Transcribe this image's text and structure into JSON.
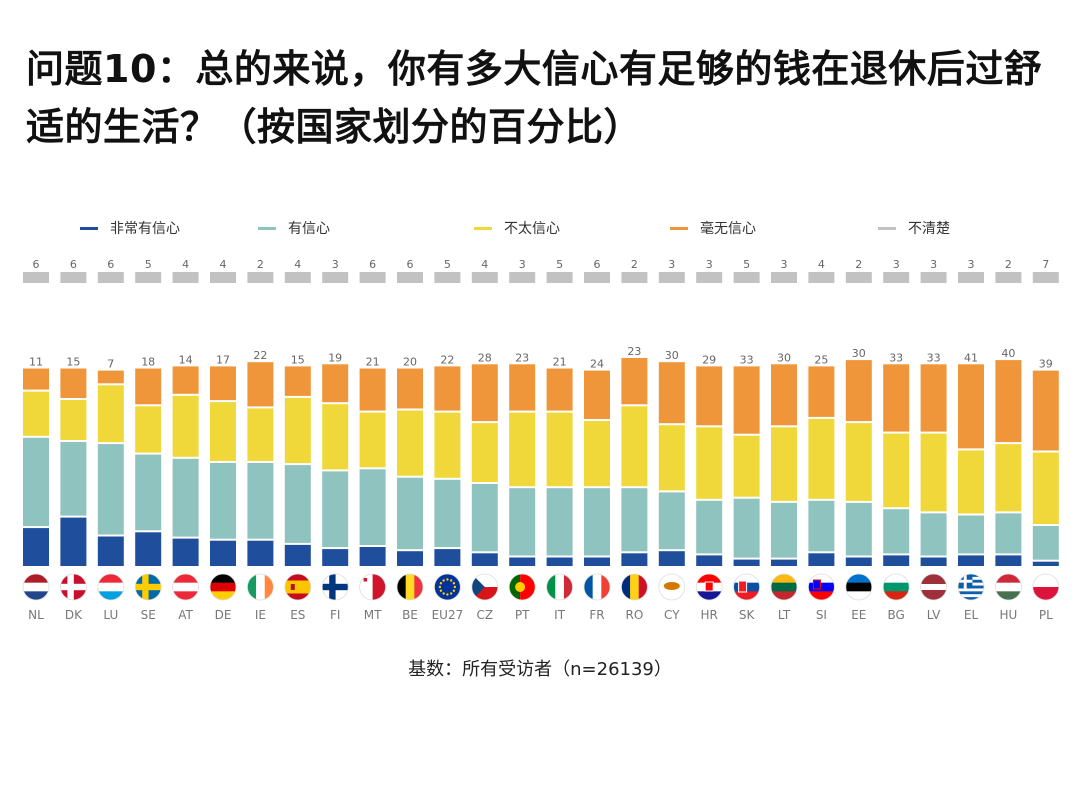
{
  "title": "问题10：总的来说，你有多大信心有足够的钱在退休后过舒适的生活？（按国家划分的百分比）",
  "footer": "基数：所有受访者（n=26139）",
  "colors": {
    "very": "#1f4e9c",
    "fairly": "#8fc3bf",
    "notvery": "#f0d83a",
    "notatall": "#f0963a",
    "dk": "#c2c2c2"
  },
  "chart_data": {
    "type": "bar",
    "stacked": true,
    "categories": [
      "NL",
      "DK",
      "LU",
      "SE",
      "AT",
      "DE",
      "IE",
      "ES",
      "FI",
      "MT",
      "BE",
      "EU27",
      "CZ",
      "PT",
      "IT",
      "FR",
      "RO",
      "CY",
      "HR",
      "SK",
      "LT",
      "SI",
      "EE",
      "BG",
      "LV",
      "EL",
      "HU",
      "PL"
    ],
    "flags": [
      "flag-nl",
      "flag-dk",
      "flag-lu",
      "flag-se",
      "flag-at",
      "flag-de",
      "flag-ie",
      "flag-es",
      "flag-fi",
      "flag-mt",
      "flag-be",
      "flag-eu27",
      "flag-cz",
      "flag-pt",
      "flag-it",
      "flag-fr",
      "flag-ro",
      "flag-cy",
      "flag-hr",
      "flag-sk",
      "flag-lt",
      "flag-si",
      "flag-ee",
      "flag-bg",
      "flag-lv",
      "flag-el",
      "flag-hu",
      "flag-pl"
    ],
    "series": [
      {
        "key": "very",
        "name": "非常有信心",
        "values": [
          19,
          24,
          15,
          17,
          14,
          13,
          13,
          11,
          9,
          10,
          8,
          9,
          7,
          5,
          5,
          5,
          7,
          8,
          6,
          4,
          4,
          7,
          5,
          6,
          5,
          6,
          6,
          3
        ]
      },
      {
        "key": "fairly",
        "name": "有信心",
        "values": [
          43,
          36,
          44,
          37,
          38,
          37,
          37,
          38,
          37,
          37,
          35,
          33,
          33,
          33,
          33,
          33,
          31,
          28,
          26,
          29,
          27,
          25,
          26,
          22,
          21,
          19,
          20,
          17
        ]
      },
      {
        "key": "notvery",
        "name": "不太信心",
        "values": [
          22,
          20,
          28,
          23,
          30,
          29,
          26,
          32,
          32,
          27,
          32,
          32,
          29,
          36,
          36,
          32,
          39,
          32,
          35,
          30,
          36,
          39,
          38,
          36,
          38,
          31,
          33,
          35
        ]
      },
      {
        "key": "notatall",
        "name": "毫无信心",
        "values": [
          11,
          15,
          7,
          18,
          14,
          17,
          22,
          15,
          19,
          21,
          20,
          22,
          28,
          23,
          21,
          24,
          23,
          30,
          29,
          33,
          30,
          25,
          30,
          33,
          33,
          41,
          40,
          39
        ]
      },
      {
        "key": "dk",
        "name": "不清楚",
        "values": [
          6,
          6,
          6,
          5,
          4,
          4,
          2,
          4,
          3,
          6,
          6,
          5,
          4,
          3,
          5,
          6,
          2,
          3,
          3,
          5,
          3,
          4,
          2,
          3,
          3,
          3,
          2,
          7
        ]
      }
    ],
    "legend_position": "top"
  }
}
